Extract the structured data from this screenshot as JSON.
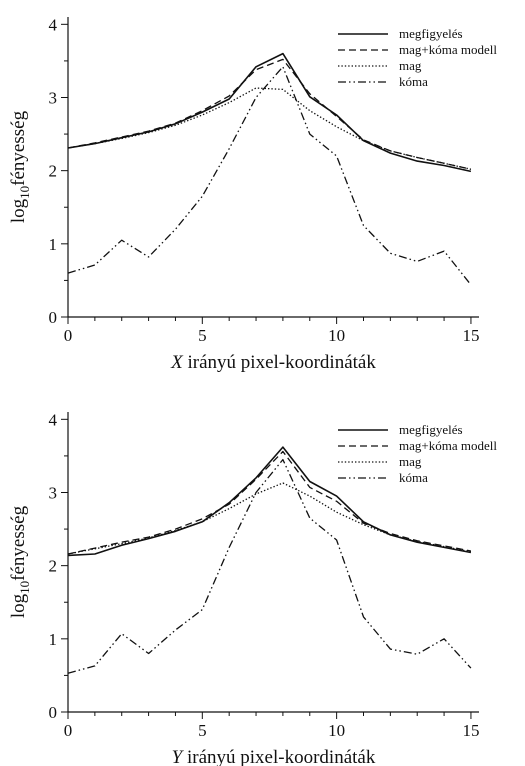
{
  "chart_data": [
    {
      "type": "line",
      "xlabel_var": "X",
      "xlabel_rest": " irányú pixel-koordináták",
      "ylabel_pre": "log",
      "ylabel_sub": "10",
      "ylabel_post": "fényesség",
      "xlim": [
        0,
        15.3
      ],
      "ylim": [
        0,
        4.1
      ],
      "xticks": [
        0,
        5,
        10,
        15
      ],
      "yticks": [
        0,
        1,
        2,
        3,
        4
      ],
      "legend_position": "top-right",
      "x": [
        0,
        1,
        2,
        3,
        4,
        5,
        6,
        7,
        8,
        9,
        10,
        11,
        12,
        13,
        14,
        15
      ],
      "series": [
        {
          "name": "megfigyelés",
          "style": "solid",
          "values": [
            2.31,
            2.37,
            2.45,
            2.53,
            2.64,
            2.8,
            2.98,
            3.42,
            3.6,
            3.01,
            2.76,
            2.41,
            2.24,
            2.13,
            2.07,
            1.99
          ]
        },
        {
          "name": "mag+kóma modell",
          "style": "dashed",
          "values": [
            2.31,
            2.38,
            2.46,
            2.54,
            2.65,
            2.82,
            3.02,
            3.38,
            3.52,
            3.05,
            2.74,
            2.42,
            2.27,
            2.18,
            2.1,
            2.02
          ]
        },
        {
          "name": "mag",
          "style": "dotted",
          "values": [
            2.31,
            2.37,
            2.44,
            2.52,
            2.62,
            2.76,
            2.93,
            3.13,
            3.11,
            2.82,
            2.6,
            2.41,
            2.27,
            2.18,
            2.1,
            2.02
          ]
        },
        {
          "name": "kóma",
          "style": "dashdotdot",
          "values": [
            0.6,
            0.71,
            1.05,
            0.82,
            1.2,
            1.65,
            2.3,
            3.0,
            3.42,
            2.5,
            2.2,
            1.25,
            0.87,
            0.76,
            0.9,
            0.44
          ]
        }
      ]
    },
    {
      "type": "line",
      "xlabel_var": "Y",
      "xlabel_rest": " irányú pixel-koordináták",
      "ylabel_pre": "log",
      "ylabel_sub": "10",
      "ylabel_post": "fényesség",
      "xlim": [
        0,
        15.3
      ],
      "ylim": [
        0,
        4.1
      ],
      "xticks": [
        0,
        5,
        10,
        15
      ],
      "yticks": [
        0,
        1,
        2,
        3,
        4
      ],
      "legend_position": "top-right",
      "x": [
        0,
        1,
        2,
        3,
        4,
        5,
        6,
        7,
        8,
        9,
        10,
        11,
        12,
        13,
        14,
        15
      ],
      "series": [
        {
          "name": "megfigyelés",
          "style": "solid",
          "values": [
            2.14,
            2.16,
            2.28,
            2.37,
            2.47,
            2.6,
            2.86,
            3.2,
            3.62,
            3.15,
            2.95,
            2.6,
            2.42,
            2.32,
            2.25,
            2.18
          ]
        },
        {
          "name": "mag+kóma modell",
          "style": "dashed",
          "values": [
            2.16,
            2.24,
            2.32,
            2.39,
            2.5,
            2.64,
            2.84,
            3.18,
            3.56,
            3.07,
            2.88,
            2.58,
            2.44,
            2.34,
            2.27,
            2.2
          ]
        },
        {
          "name": "mag",
          "style": "dotted",
          "values": [
            2.16,
            2.23,
            2.3,
            2.38,
            2.48,
            2.6,
            2.78,
            2.98,
            3.13,
            2.95,
            2.73,
            2.56,
            2.42,
            2.33,
            2.26,
            2.19
          ]
        },
        {
          "name": "kóma",
          "style": "dashdotdot",
          "values": [
            0.53,
            0.63,
            1.07,
            0.8,
            1.12,
            1.4,
            2.25,
            3.0,
            3.45,
            2.65,
            2.35,
            1.3,
            0.86,
            0.79,
            1.0,
            0.6
          ]
        }
      ]
    }
  ]
}
